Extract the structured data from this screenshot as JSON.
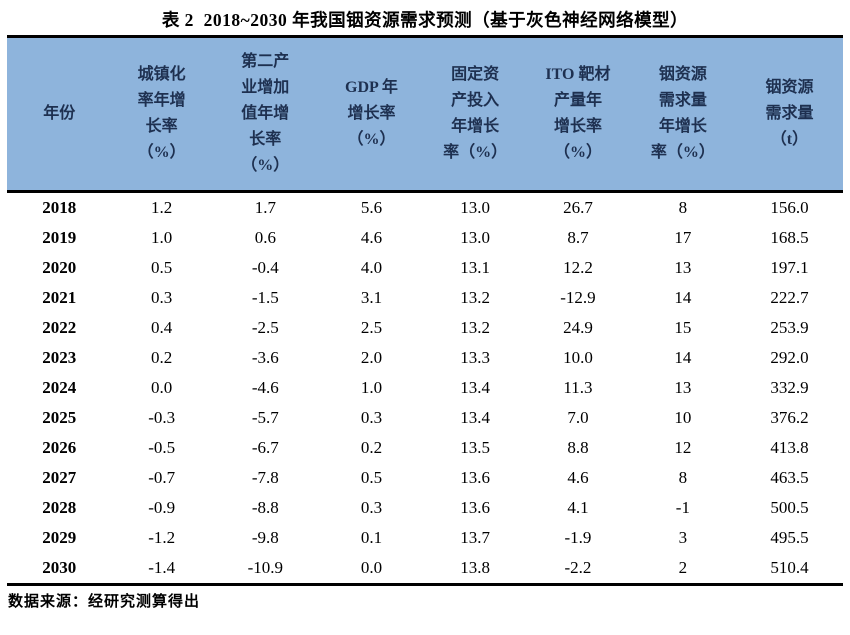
{
  "title": "表 2  2018~2030 年我国铟资源需求预测（基于灰色神经网络模型）",
  "source_note": "数据来源：经研究测算得出",
  "colors": {
    "header_bg": "#8EB4DC",
    "header_text": "#1E3050",
    "rule": "#000000"
  },
  "table": {
    "headers": [
      "年份",
      "城镇化\n率年增\n长率\n（%）",
      "第二产\n业增加\n值年增\n长率\n（%）",
      "GDP 年\n增长率\n（%）",
      "固定资\n产投入\n年增长\n率（%）",
      "ITO 靶材\n产量年\n增长率\n（%）",
      "铟资源\n需求量\n年增长\n率（%）",
      "铟资源\n需求量\n（t）"
    ],
    "rows": [
      [
        "2018",
        "1.2",
        "1.7",
        "5.6",
        "13.0",
        "26.7",
        "8",
        "156.0"
      ],
      [
        "2019",
        "1.0",
        "0.6",
        "4.6",
        "13.0",
        "8.7",
        "17",
        "168.5"
      ],
      [
        "2020",
        "0.5",
        "-0.4",
        "4.0",
        "13.1",
        "12.2",
        "13",
        "197.1"
      ],
      [
        "2021",
        "0.3",
        "-1.5",
        "3.1",
        "13.2",
        "-12.9",
        "14",
        "222.7"
      ],
      [
        "2022",
        "0.4",
        "-2.5",
        "2.5",
        "13.2",
        "24.9",
        "15",
        "253.9"
      ],
      [
        "2023",
        "0.2",
        "-3.6",
        "2.0",
        "13.3",
        "10.0",
        "14",
        "292.0"
      ],
      [
        "2024",
        "0.0",
        "-4.6",
        "1.0",
        "13.4",
        "11.3",
        "13",
        "332.9"
      ],
      [
        "2025",
        "-0.3",
        "-5.7",
        "0.3",
        "13.4",
        "7.0",
        "10",
        "376.2"
      ],
      [
        "2026",
        "-0.5",
        "-6.7",
        "0.2",
        "13.5",
        "8.8",
        "12",
        "413.8"
      ],
      [
        "2027",
        "-0.7",
        "-7.8",
        "0.5",
        "13.6",
        "4.6",
        "8",
        "463.5"
      ],
      [
        "2028",
        "-0.9",
        "-8.8",
        "0.3",
        "13.6",
        "4.1",
        "-1",
        "500.5"
      ],
      [
        "2029",
        "-1.2",
        "-9.8",
        "0.1",
        "13.7",
        "-1.9",
        "3",
        "495.5"
      ],
      [
        "2030",
        "-1.4",
        "-10.9",
        "0.0",
        "13.8",
        "-2.2",
        "2",
        "510.4"
      ]
    ]
  }
}
